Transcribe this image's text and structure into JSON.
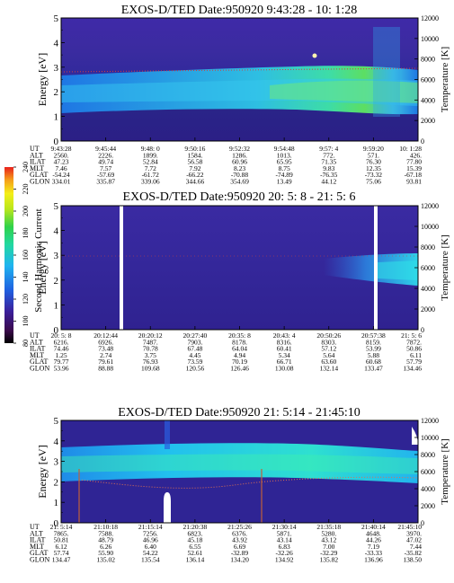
{
  "colorbar": {
    "label": "Second Harmonic Current",
    "ticks": [
      "80",
      "100",
      "120",
      "140",
      "160",
      "180",
      "200",
      "220",
      "240"
    ],
    "min": 80,
    "max": 240
  },
  "chart_data": [
    {
      "type": "heatmap",
      "title": "EXOS-D/TED  Date:950920  9:43:28 - 10: 1:28",
      "ylabel": "Energy [eV]",
      "y2label": "Temperature [K]",
      "ylim": [
        0,
        5
      ],
      "y2lim": [
        0,
        12000
      ],
      "yticks": [
        "0",
        "1",
        "2",
        "3",
        "4",
        "5"
      ],
      "y2ticks": [
        "0",
        "2000",
        "4000",
        "6000",
        "8000",
        "10000",
        "12000"
      ],
      "ephemeris": {
        "row_labels": [
          "UT",
          "ALT",
          "ILAT",
          "MLT",
          "GLAT",
          "GLON"
        ],
        "columns": [
          [
            "9:43:28",
            "2560.",
            "47.23",
            "7.46",
            "-54.24",
            "334.01"
          ],
          [
            "9:45:44",
            "2226.",
            "49.74",
            "7.57",
            "-57.69",
            "335.87"
          ],
          [
            "9:48: 0",
            "1899.",
            "52.84",
            "7.72",
            "-61.72",
            "339.06"
          ],
          [
            "9:50:16",
            "1584.",
            "56.58",
            "7.92",
            "-66.22",
            "344.66"
          ],
          [
            "9:52:32",
            "1286.",
            "60.96",
            "8.23",
            "-70.88",
            "354.69"
          ],
          [
            "9:54:48",
            "1013.",
            "65.95",
            "8.75",
            "-74.89",
            "13.49"
          ],
          [
            "9:57: 4",
            "772.",
            "71.35",
            "9.83",
            "-76.35",
            "44.12"
          ],
          [
            "9:59:20",
            "571.",
            "76.30",
            "12.35",
            "-73.32",
            "75.06"
          ],
          [
            "10: 1:28",
            "426.",
            "77.80",
            "15.39",
            "-67.18",
            "93.81"
          ]
        ]
      }
    },
    {
      "type": "heatmap",
      "title": "EXOS-D/TED  Date:950920  20: 5: 8 - 21: 5: 6",
      "ylabel": "Energy [eV]",
      "y2label": "Temperature [K]",
      "ylim": [
        0,
        5
      ],
      "y2lim": [
        0,
        12000
      ],
      "yticks": [
        "0",
        "1",
        "2",
        "3",
        "4",
        "5"
      ],
      "y2ticks": [
        "0",
        "2000",
        "4000",
        "6000",
        "8000",
        "10000",
        "12000"
      ],
      "ephemeris": {
        "row_labels": [
          "UT",
          "ALT",
          "ILAT",
          "MLT",
          "GLAT",
          "GLON"
        ],
        "columns": [
          [
            "20: 5: 8",
            "6216.",
            "74.46",
            "1.25",
            "79.77",
            "53.96"
          ],
          [
            "20:12:44",
            "6926.",
            "73.48",
            "2.74",
            "79.61",
            "88.88"
          ],
          [
            "20:20:12",
            "7487.",
            "70.78",
            "3.75",
            "76.93",
            "109.68"
          ],
          [
            "20:27:40",
            "7903.",
            "67.48",
            "4.45",
            "73.59",
            "120.56"
          ],
          [
            "20:35: 8",
            "8178.",
            "64.04",
            "4.94",
            "70.19",
            "126.46"
          ],
          [
            "20:43: 4",
            "8316.",
            "60.41",
            "5.34",
            "66.71",
            "130.08"
          ],
          [
            "20:50:26",
            "8303.",
            "57.12",
            "5.64",
            "63.60",
            "132.14"
          ],
          [
            "20:57:38",
            "8159.",
            "53.99",
            "5.88",
            "60.68",
            "133.47"
          ],
          [
            "21: 5: 6",
            "7872.",
            "50.86",
            "6.11",
            "57.79",
            "134.46"
          ]
        ]
      }
    },
    {
      "type": "heatmap",
      "title": "EXOS-D/TED  Date:950920  21: 5:14 - 21:45:10",
      "ylabel": "Energy [eV]",
      "y2label": "Temperature [K]",
      "ylim": [
        0,
        5
      ],
      "y2lim": [
        0,
        12000
      ],
      "yticks": [
        "0",
        "1",
        "2",
        "3",
        "4",
        "5"
      ],
      "y2ticks": [
        "0",
        "2000",
        "4000",
        "6000",
        "8000",
        "10000",
        "12000"
      ],
      "ephemeris": {
        "row_labels": [
          "UT",
          "ALT",
          "ILAT",
          "MLT",
          "GLAT",
          "GLON"
        ],
        "columns": [
          [
            "21: 5:14",
            "7865.",
            "50.81",
            "6.12",
            "57.74",
            "134.47"
          ],
          [
            "21:10:18",
            "7588.",
            "48.79",
            "6.26",
            "55.90",
            "135.02"
          ],
          [
            "21:15:14",
            "7256.",
            "46.96",
            "6.40",
            "54.22",
            "135.54"
          ],
          [
            "21:20:38",
            "6823.",
            "45.18",
            "6.55",
            "52.61",
            "136.14"
          ],
          [
            "21:25:26",
            "6376.",
            "43.92",
            "6.69",
            "-32.89",
            "134.20"
          ],
          [
            "21:30:14",
            "5871.",
            "43.14",
            "6.83",
            "-32.26",
            "134.92"
          ],
          [
            "21:35:18",
            "5280.",
            "43.12",
            "7.00",
            "-32.29",
            "135.82"
          ],
          [
            "21:40:14",
            "4648.",
            "44.26",
            "7.19",
            "-33.33",
            "136.96"
          ],
          [
            "21:45:10",
            "3970.",
            "47.02",
            "7.44",
            "-35.82",
            "138.50"
          ]
        ]
      }
    }
  ]
}
